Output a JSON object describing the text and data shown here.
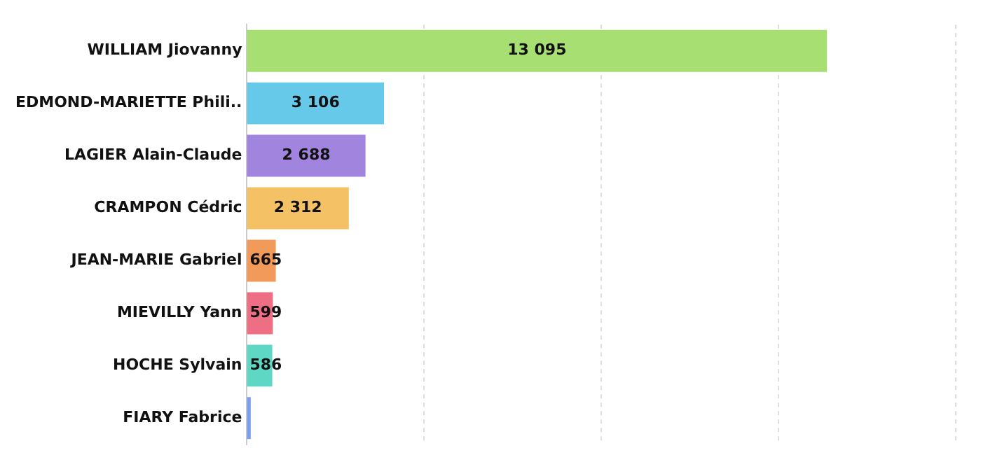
{
  "chart_data": {
    "type": "bar",
    "orientation": "horizontal",
    "categories": [
      "WILLIAM Jiovanny",
      "EDMOND-MARIETTE Phili..",
      "LAGIER Alain-Claude",
      "CRAMPON Cédric",
      "JEAN-MARIE Gabriel",
      "MIEVILLY Yann",
      "HOCHE Sylvain",
      "FIARY Fabrice"
    ],
    "values": [
      13095,
      3106,
      2688,
      2312,
      665,
      599,
      586,
      100
    ],
    "value_labels": [
      "13 095",
      "3 106",
      "2 688",
      "2 312",
      "665",
      "599",
      "586",
      null
    ],
    "colors": [
      "#a8df72",
      "#66c9ea",
      "#a084dd",
      "#f4c264",
      "#f19a5a",
      "#ee6f84",
      "#5ed8c4",
      "#7b9ff0"
    ],
    "xlim": [
      0,
      16000
    ],
    "xticks": [
      {
        "value": 0,
        "label": null
      },
      {
        "value": 4000,
        "label": null
      },
      {
        "value": 8000,
        "label": null
      },
      {
        "value": 12000,
        "label": null
      },
      {
        "value": 16000,
        "label": null
      }
    ],
    "grid": "x",
    "legend": false,
    "tick_labels": "y"
  }
}
